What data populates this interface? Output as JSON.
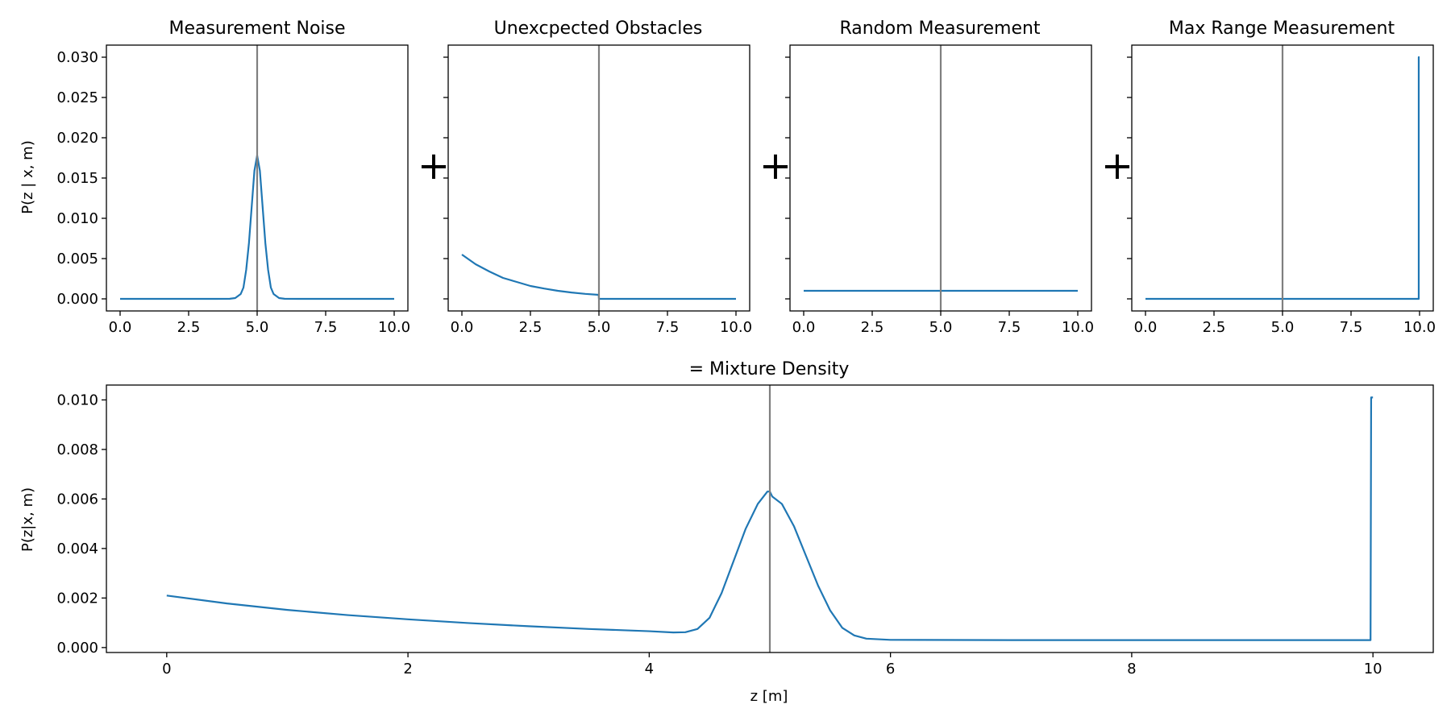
{
  "figure": {
    "separator": "+",
    "shared_ylabel_top": "P(z | x, m)",
    "ylabel_bottom": "P(z|x, m)",
    "xlabel_bottom": "z [m]"
  },
  "colors": {
    "series": "#1f77b4",
    "vline": "#7f7f7f",
    "axes": "#000000",
    "background": "#ffffff"
  },
  "chart_data": [
    {
      "type": "line",
      "title": "Measurement Noise",
      "xlabel": "",
      "ylabel": "P(z | x, m)",
      "xlim": [
        -0.5,
        10.5
      ],
      "ylim": [
        -0.0015,
        0.0315
      ],
      "xticks": [
        0,
        2.5,
        5,
        7.5,
        10
      ],
      "xtick_labels": [
        "0.0",
        "2.5",
        "5.0",
        "7.5",
        "10.0"
      ],
      "yticks": [
        0,
        0.005,
        0.01,
        0.015,
        0.02,
        0.025,
        0.03
      ],
      "ytick_labels": [
        "0.000",
        "0.005",
        "0.010",
        "0.015",
        "0.020",
        "0.025",
        "0.030"
      ],
      "vline_x": 5,
      "grid": false,
      "series": [
        {
          "x": [
            0,
            3.5,
            4.0,
            4.2,
            4.4,
            4.5,
            4.6,
            4.7,
            4.8,
            4.9,
            5.0,
            5.1,
            5.2,
            5.3,
            5.4,
            5.5,
            5.6,
            5.8,
            6.0,
            6.5,
            10
          ],
          "y": [
            0,
            0,
            1e-05,
            0.0001,
            0.0006,
            0.0014,
            0.0036,
            0.0069,
            0.0114,
            0.0159,
            0.0178,
            0.0159,
            0.0114,
            0.0069,
            0.0036,
            0.0014,
            0.0006,
            0.0001,
            1e-05,
            0,
            0
          ]
        }
      ]
    },
    {
      "type": "line",
      "title": "Unexcpected Obstacles",
      "xlabel": "",
      "ylabel": "",
      "xlim": [
        -0.5,
        10.5
      ],
      "ylim": [
        -0.0015,
        0.0315
      ],
      "xticks": [
        0,
        2.5,
        5,
        7.5,
        10
      ],
      "xtick_labels": [
        "0.0",
        "2.5",
        "5.0",
        "7.5",
        "10.0"
      ],
      "yticks": [
        0,
        0.005,
        0.01,
        0.015,
        0.02,
        0.025,
        0.03
      ],
      "ytick_labels": [],
      "vline_x": 5,
      "grid": false,
      "series": [
        {
          "x": [
            0,
            0.5,
            1.0,
            1.5,
            2.0,
            2.5,
            3.0,
            3.5,
            4.0,
            4.5,
            4.99,
            5.0,
            10
          ],
          "y": [
            0.0055,
            0.0043,
            0.0034,
            0.0026,
            0.0021,
            0.0016,
            0.00128,
            0.001,
            0.00079,
            0.00062,
            0.0005,
            0,
            0
          ]
        }
      ]
    },
    {
      "type": "line",
      "title": "Random Measurement",
      "xlabel": "",
      "ylabel": "",
      "xlim": [
        -0.5,
        10.5
      ],
      "ylim": [
        -0.0015,
        0.0315
      ],
      "xticks": [
        0,
        2.5,
        5,
        7.5,
        10
      ],
      "xtick_labels": [
        "0.0",
        "2.5",
        "5.0",
        "7.5",
        "10.0"
      ],
      "yticks": [
        0,
        0.005,
        0.01,
        0.015,
        0.02,
        0.025,
        0.03
      ],
      "ytick_labels": [],
      "vline_x": 5,
      "grid": false,
      "series": [
        {
          "x": [
            0,
            10
          ],
          "y": [
            0.001,
            0.001
          ]
        }
      ]
    },
    {
      "type": "line",
      "title": "Max Range Measurement",
      "xlabel": "",
      "ylabel": "",
      "xlim": [
        -0.5,
        10.5
      ],
      "ylim": [
        -0.0015,
        0.0315
      ],
      "xticks": [
        0,
        2.5,
        5,
        7.5,
        10
      ],
      "xtick_labels": [
        "0.0",
        "2.5",
        "5.0",
        "7.5",
        "10.0"
      ],
      "yticks": [
        0,
        0.005,
        0.01,
        0.015,
        0.02,
        0.025,
        0.03
      ],
      "ytick_labels": [],
      "vline_x": 5,
      "grid": false,
      "series": [
        {
          "x": [
            0,
            9.97,
            9.97,
            10
          ],
          "y": [
            0,
            0,
            0.03,
            0.03
          ]
        }
      ]
    },
    {
      "type": "line",
      "title": "= Mixture Density",
      "xlabel": "z [m]",
      "ylabel": "P(z|x, m)",
      "xlim": [
        -0.5,
        10.5
      ],
      "ylim": [
        -0.0002,
        0.0106
      ],
      "xticks": [
        0,
        2,
        4,
        6,
        8,
        10
      ],
      "xtick_labels": [
        "0",
        "2",
        "4",
        "6",
        "8",
        "10"
      ],
      "yticks": [
        0,
        0.002,
        0.004,
        0.006,
        0.008,
        0.01
      ],
      "ytick_labels": [
        "0.000",
        "0.002",
        "0.004",
        "0.006",
        "0.008",
        "0.010"
      ],
      "vline_x": 5,
      "grid": false,
      "series": [
        {
          "x": [
            0,
            0.5,
            1.0,
            1.5,
            2.0,
            2.5,
            3.0,
            3.5,
            4.0,
            4.2,
            4.3,
            4.4,
            4.5,
            4.6,
            4.7,
            4.8,
            4.9,
            4.98,
            5.0,
            5.02,
            5.1,
            5.2,
            5.3,
            5.4,
            5.5,
            5.6,
            5.7,
            5.8,
            6.0,
            7.0,
            8.0,
            9.0,
            9.98,
            9.985,
            10.0
          ],
          "y": [
            0.0021,
            0.00178,
            0.00152,
            0.00131,
            0.00114,
            0.00099,
            0.00086,
            0.00075,
            0.00066,
            0.00061,
            0.00062,
            0.00075,
            0.0012,
            0.0022,
            0.0035,
            0.0048,
            0.0058,
            0.0063,
            0.0063,
            0.0061,
            0.0058,
            0.0049,
            0.0037,
            0.0025,
            0.0015,
            0.0008,
            0.00049,
            0.00036,
            0.00031,
            0.0003,
            0.0003,
            0.0003,
            0.0003,
            0.0101,
            0.0101
          ]
        }
      ]
    }
  ]
}
